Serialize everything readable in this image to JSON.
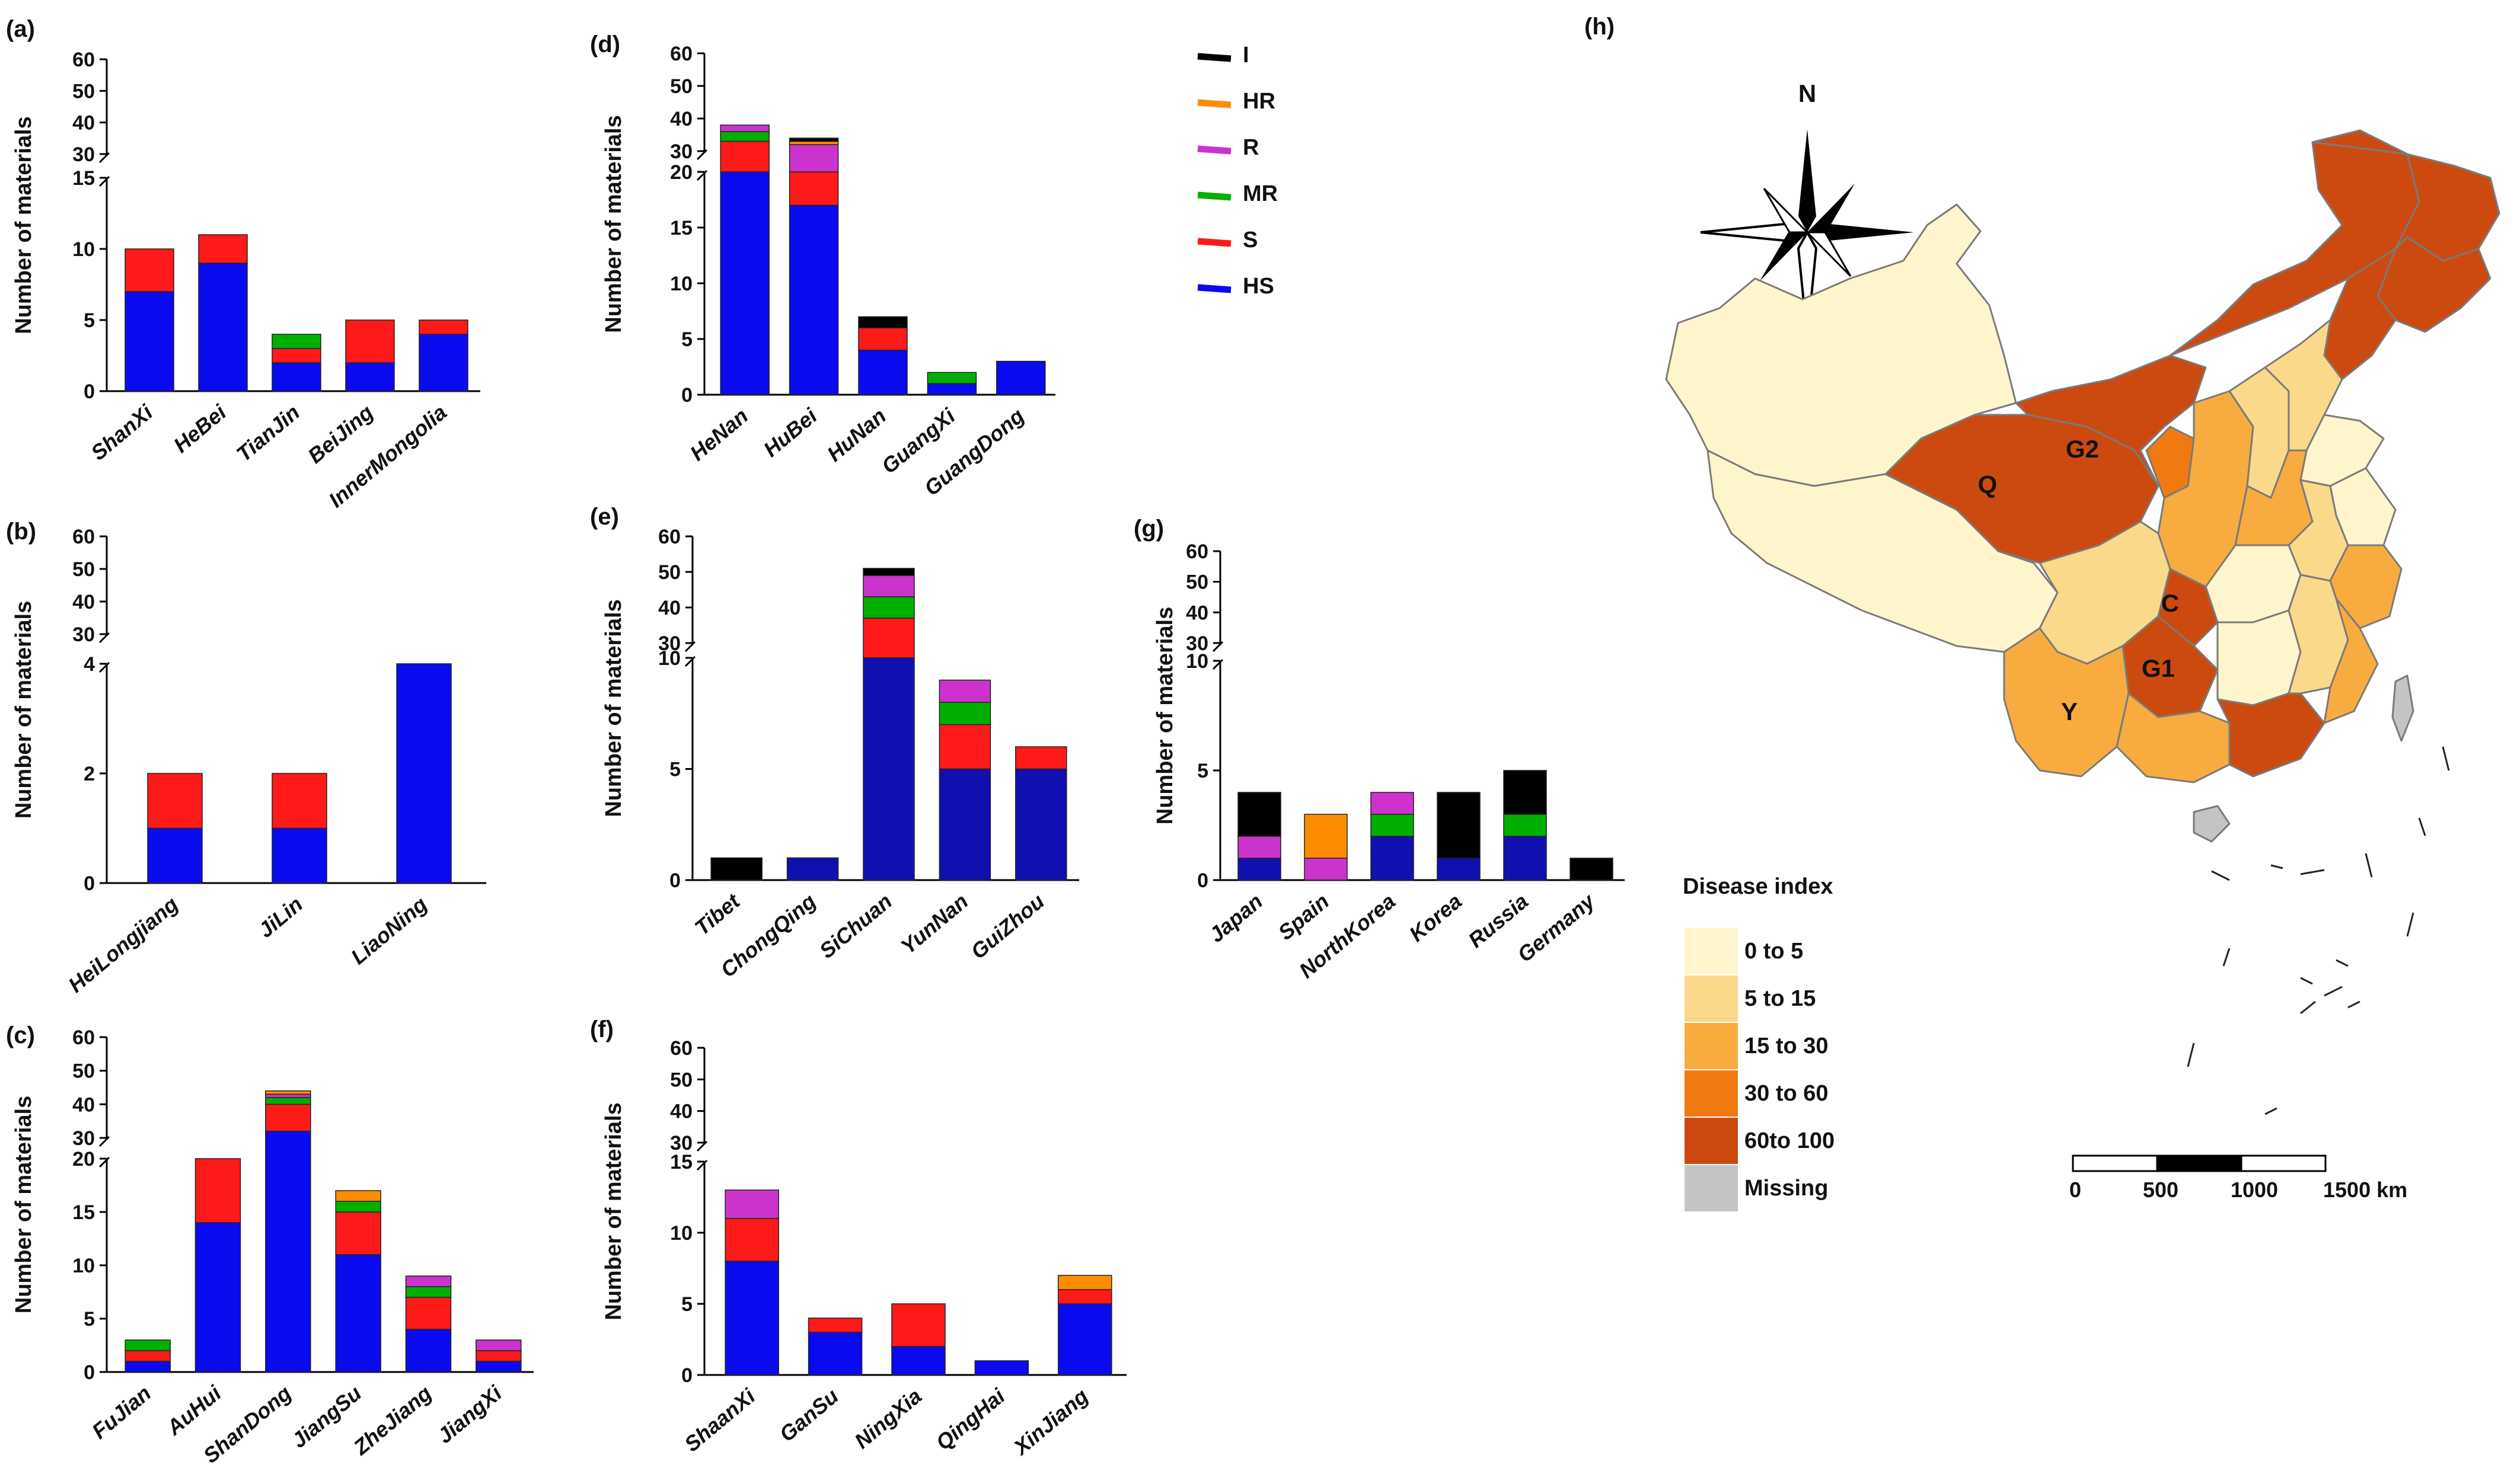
{
  "colors": {
    "I": "#000000",
    "HR": "#ff8c00",
    "R": "#cc33cc",
    "MR": "#00b000",
    "S": "#ff1a1a",
    "HS": "#0a0aee",
    "HS_dark": "#1010b0",
    "map_0_5": "#fef5cc",
    "map_5_15": "#fbd98a",
    "map_15_30": "#f8ac3f",
    "map_30_60": "#f07a10",
    "map_60_100": "#cc4a10",
    "map_missing": "#c4c4c4"
  },
  "legend": {
    "order": [
      "I",
      "HR",
      "R",
      "MR",
      "S",
      "HS"
    ],
    "labels": {
      "I": "I",
      "HR": "HR",
      "R": "R",
      "MR": "MR",
      "S": "S",
      "HS": "HS"
    }
  },
  "chart_data": [
    {
      "id": "a",
      "panel_label": "(a)",
      "type": "bar",
      "stacked": true,
      "broken_axis": true,
      "ylabel": "Number of materials",
      "lower_range": [
        0,
        15
      ],
      "lower_ticks": [
        "0",
        "5",
        "10",
        "15"
      ],
      "upper_range": [
        30,
        60
      ],
      "upper_ticks": [
        "30",
        "40",
        "50",
        "60"
      ],
      "categories": [
        "ShanXi",
        "HeBei",
        "TianJin",
        "BeiJing",
        "InnerMongolia"
      ],
      "series": [
        {
          "name": "HS",
          "values": [
            7,
            9,
            2,
            2,
            4
          ]
        },
        {
          "name": "S",
          "values": [
            3,
            2,
            1,
            3,
            1
          ]
        },
        {
          "name": "MR",
          "values": [
            0,
            0,
            1,
            0,
            0
          ]
        }
      ]
    },
    {
      "id": "b",
      "panel_label": "(b)",
      "type": "bar",
      "stacked": true,
      "broken_axis": true,
      "ylabel": "Number of materials",
      "lower_range": [
        0,
        4
      ],
      "lower_ticks": [
        "0",
        "2",
        "4"
      ],
      "upper_range": [
        30,
        60
      ],
      "upper_ticks": [
        "30",
        "40",
        "50",
        "60"
      ],
      "categories": [
        "HeiLongjiang",
        "JiLin",
        "LiaoNing"
      ],
      "series": [
        {
          "name": "HS",
          "values": [
            1,
            1,
            4
          ]
        },
        {
          "name": "S",
          "values": [
            1,
            1,
            0
          ]
        }
      ]
    },
    {
      "id": "c",
      "panel_label": "(c)",
      "type": "bar",
      "stacked": true,
      "broken_axis": true,
      "ylabel": "Number of materials",
      "lower_range": [
        0,
        20
      ],
      "lower_ticks": [
        "0",
        "5",
        "10",
        "15",
        "20"
      ],
      "upper_range": [
        30,
        60
      ],
      "upper_ticks": [
        "30",
        "40",
        "50",
        "60"
      ],
      "categories": [
        "FuJian",
        "AuHui",
        "ShanDong",
        "JiangSu",
        "ZheJiang",
        "JiangXi"
      ],
      "series": [
        {
          "name": "HS",
          "values": [
            1,
            14,
            32,
            11,
            4,
            1
          ]
        },
        {
          "name": "S",
          "values": [
            1,
            6,
            8,
            4,
            3,
            1
          ]
        },
        {
          "name": "MR",
          "values": [
            1,
            0,
            2,
            1,
            1,
            0
          ]
        },
        {
          "name": "R",
          "values": [
            0,
            0,
            1,
            0,
            1,
            1
          ]
        },
        {
          "name": "HR",
          "values": [
            0,
            0,
            1,
            1,
            0,
            0
          ]
        },
        {
          "name": "I",
          "values": [
            0,
            0,
            0,
            0,
            0,
            0
          ]
        }
      ]
    },
    {
      "id": "d",
      "panel_label": "(d)",
      "type": "bar",
      "stacked": true,
      "broken_axis": true,
      "ylabel": "Number of materials",
      "lower_range": [
        0,
        20
      ],
      "lower_ticks": [
        "0",
        "5",
        "10",
        "15",
        "20"
      ],
      "upper_range": [
        30,
        60
      ],
      "upper_ticks": [
        "30",
        "40",
        "50",
        "60"
      ],
      "categories": [
        "HeNan",
        "HuBei",
        "HuNan",
        "GuangXi",
        "GuangDong"
      ],
      "series": [
        {
          "name": "HS",
          "values": [
            20,
            17,
            4,
            1,
            3
          ]
        },
        {
          "name": "S",
          "values": [
            13,
            3,
            2,
            0,
            0
          ]
        },
        {
          "name": "MR",
          "values": [
            3,
            10,
            0,
            1,
            0
          ]
        },
        {
          "name": "R",
          "values": [
            2,
            2,
            0,
            0,
            0
          ]
        },
        {
          "name": "HR",
          "values": [
            0,
            1,
            0,
            0,
            0
          ]
        },
        {
          "name": "I",
          "values": [
            0,
            1,
            1,
            0,
            0
          ]
        }
      ]
    },
    {
      "id": "e",
      "panel_label": "(e)",
      "type": "bar",
      "stacked": true,
      "broken_axis": true,
      "ylabel": "Number of materials",
      "lower_range": [
        0,
        10
      ],
      "lower_ticks": [
        "0",
        "5",
        "10"
      ],
      "upper_range": [
        30,
        60
      ],
      "upper_ticks": [
        "30",
        "40",
        "50",
        "60"
      ],
      "categories": [
        "Tibet",
        "ChongQing",
        "SiChuan",
        "YunNan",
        "GuiZhou"
      ],
      "series": [
        {
          "name": "HS",
          "values": [
            0,
            1,
            30,
            5,
            5
          ]
        },
        {
          "name": "S",
          "values": [
            0,
            0,
            7,
            2,
            1
          ]
        },
        {
          "name": "MR",
          "values": [
            0,
            0,
            6,
            1,
            0
          ]
        },
        {
          "name": "R",
          "values": [
            0,
            0,
            6,
            1,
            0
          ]
        },
        {
          "name": "HR",
          "values": [
            0,
            0,
            0,
            0,
            0
          ]
        },
        {
          "name": "I",
          "values": [
            1,
            0,
            2,
            0,
            0
          ]
        }
      ]
    },
    {
      "id": "f",
      "panel_label": "(f)",
      "type": "bar",
      "stacked": true,
      "broken_axis": true,
      "ylabel": "Number of materials",
      "lower_range": [
        0,
        15
      ],
      "lower_ticks": [
        "0",
        "5",
        "10",
        "15"
      ],
      "upper_range": [
        30,
        60
      ],
      "upper_ticks": [
        "30",
        "40",
        "50",
        "60"
      ],
      "categories": [
        "ShaanXi",
        "GanSu",
        "NingXia",
        "QingHai",
        "XinJiang"
      ],
      "series": [
        {
          "name": "HS",
          "values": [
            8,
            3,
            2,
            1,
            5
          ]
        },
        {
          "name": "S",
          "values": [
            3,
            1,
            3,
            0,
            1
          ]
        },
        {
          "name": "R",
          "values": [
            2,
            0,
            0,
            0,
            0
          ]
        },
        {
          "name": "HR",
          "values": [
            0,
            0,
            0,
            0,
            1
          ]
        }
      ]
    },
    {
      "id": "g",
      "panel_label": "(g)",
      "type": "bar",
      "stacked": true,
      "broken_axis": true,
      "ylabel": "Number of materials",
      "lower_range": [
        0,
        10
      ],
      "lower_ticks": [
        "0",
        "5",
        "10"
      ],
      "upper_range": [
        30,
        60
      ],
      "upper_ticks": [
        "30",
        "40",
        "50",
        "60"
      ],
      "categories": [
        "Japan",
        "Spain",
        "NorthKorea",
        "Korea",
        "Russia",
        "Germany"
      ],
      "series": [
        {
          "name": "HS",
          "values": [
            1,
            0,
            2,
            1,
            2,
            0
          ]
        },
        {
          "name": "MR",
          "values": [
            0,
            0,
            1,
            0,
            1,
            0
          ]
        },
        {
          "name": "R",
          "values": [
            1,
            1,
            1,
            0,
            0,
            0
          ]
        },
        {
          "name": "HR",
          "values": [
            0,
            2,
            0,
            0,
            0,
            0
          ]
        },
        {
          "name": "I",
          "values": [
            2,
            0,
            0,
            3,
            2,
            1
          ]
        }
      ]
    }
  ],
  "map": {
    "panel_label": "(h)",
    "north_label": "N",
    "region_labels": [
      "G2",
      "Q",
      "C",
      "G1",
      "Y"
    ],
    "legend_title": "Disease index",
    "legend_items": [
      {
        "label": "0 to 5",
        "color_key": "map_0_5"
      },
      {
        "label": "5 to 15",
        "color_key": "map_5_15"
      },
      {
        "label": "15 to 30",
        "color_key": "map_15_30"
      },
      {
        "label": "30 to 60",
        "color_key": "map_30_60"
      },
      {
        "label": "60to 100",
        "color_key": "map_60_100"
      },
      {
        "label": "Missing",
        "color_key": "map_missing"
      }
    ],
    "scale_labels": [
      "0",
      "500",
      "1000",
      "1500 km"
    ]
  }
}
